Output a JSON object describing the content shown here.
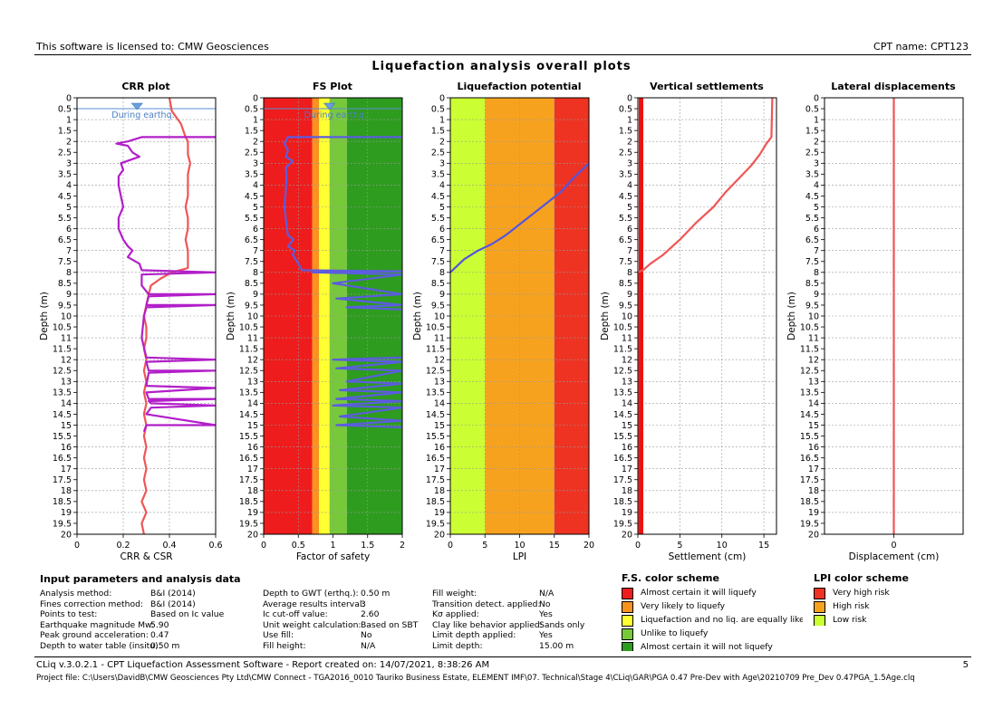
{
  "header": {
    "license": "This software is licensed to: CMW Geosciences",
    "cpt_name": "CPT name: CPT123"
  },
  "main_title": "Liquefaction analysis overall plots",
  "chart_data": [
    {
      "id": "crr",
      "type": "line",
      "title": "CRR plot",
      "xlabel": "CRR & CSR",
      "ylabel": "Depth (m)",
      "xlim": [
        0,
        0.6
      ],
      "xticks": [
        "0",
        "0.2",
        "0.4",
        "0.6"
      ],
      "xtick_values": [
        0,
        0.2,
        0.4,
        0.6
      ],
      "ylim": [
        0,
        20
      ],
      "gwt_depth": 0.5,
      "annotation": "During earthq.",
      "series": [
        {
          "color": "#f05555",
          "points": [
            [
              0.4,
              0
            ],
            [
              0.41,
              0.6
            ],
            [
              0.43,
              0.9
            ],
            [
              0.45,
              1.2
            ],
            [
              0.46,
              1.5
            ],
            [
              0.47,
              1.8
            ],
            [
              0.48,
              2.0
            ],
            [
              0.48,
              2.3
            ],
            [
              0.48,
              2.6
            ],
            [
              0.49,
              3
            ],
            [
              0.48,
              3.5
            ],
            [
              0.48,
              4
            ],
            [
              0.48,
              4.5
            ],
            [
              0.47,
              5
            ],
            [
              0.48,
              5.5
            ],
            [
              0.48,
              6
            ],
            [
              0.47,
              6.5
            ],
            [
              0.48,
              7
            ],
            [
              0.48,
              7.5
            ],
            [
              0.48,
              7.8
            ],
            [
              0.41,
              8
            ],
            [
              0.36,
              8.3
            ],
            [
              0.32,
              8.6
            ],
            [
              0.31,
              9
            ],
            [
              0.3,
              9.5
            ],
            [
              0.29,
              10
            ],
            [
              0.3,
              10.5
            ],
            [
              0.3,
              11
            ],
            [
              0.29,
              11.5
            ],
            [
              0.3,
              12
            ],
            [
              0.29,
              12.5
            ],
            [
              0.3,
              13
            ],
            [
              0.29,
              13.5
            ],
            [
              0.3,
              14
            ],
            [
              0.29,
              14.5
            ],
            [
              0.3,
              15
            ],
            [
              0.29,
              15.5
            ],
            [
              0.3,
              16
            ],
            [
              0.29,
              16.5
            ],
            [
              0.3,
              17
            ],
            [
              0.29,
              17.5
            ],
            [
              0.3,
              18
            ],
            [
              0.28,
              18.5
            ],
            [
              0.3,
              19
            ],
            [
              0.28,
              19.5
            ],
            [
              0.29,
              20
            ]
          ]
        },
        {
          "color": "#b21fc9",
          "points": [
            [
              0.6,
              1.8
            ],
            [
              0.28,
              1.8
            ],
            [
              0.22,
              2.0
            ],
            [
              0.17,
              2.1
            ],
            [
              0.22,
              2.2
            ],
            [
              0.24,
              2.5
            ],
            [
              0.27,
              2.7
            ],
            [
              0.19,
              3.0
            ],
            [
              0.2,
              3.3
            ],
            [
              0.18,
              3.6
            ],
            [
              0.18,
              4.0
            ],
            [
              0.19,
              4.5
            ],
            [
              0.2,
              5.0
            ],
            [
              0.18,
              5.5
            ],
            [
              0.18,
              6.0
            ],
            [
              0.2,
              6.5
            ],
            [
              0.22,
              6.8
            ],
            [
              0.24,
              7.0
            ],
            [
              0.22,
              7.3
            ],
            [
              0.27,
              7.6
            ],
            [
              0.28,
              7.9
            ],
            [
              0.6,
              8.0
            ],
            [
              0.28,
              8.1
            ],
            [
              0.28,
              8.6
            ],
            [
              0.31,
              9.0
            ],
            [
              0.6,
              9.0
            ],
            [
              0.31,
              9.1
            ],
            [
              0.3,
              9.5
            ],
            [
              0.6,
              9.5
            ],
            [
              0.3,
              9.6
            ],
            [
              0.29,
              10
            ],
            [
              0.28,
              11
            ],
            [
              0.3,
              11.9
            ],
            [
              0.6,
              12.0
            ],
            [
              0.3,
              12.1
            ],
            [
              0.31,
              12.5
            ],
            [
              0.6,
              12.5
            ],
            [
              0.31,
              12.6
            ],
            [
              0.3,
              13.2
            ],
            [
              0.6,
              13.3
            ],
            [
              0.3,
              13.5
            ],
            [
              0.31,
              13.8
            ],
            [
              0.6,
              13.8
            ],
            [
              0.31,
              13.9
            ],
            [
              0.32,
              14
            ],
            [
              0.6,
              14.1
            ],
            [
              0.32,
              14.2
            ],
            [
              0.3,
              14.5
            ],
            [
              0.6,
              15.0
            ],
            [
              0.3,
              15.0
            ],
            [
              0.29,
              15.3
            ]
          ]
        }
      ]
    },
    {
      "id": "fs",
      "type": "line",
      "title": "FS Plot",
      "xlabel": "Factor of safety",
      "ylabel": "Depth (m)",
      "xlim": [
        0,
        2
      ],
      "xticks": [
        "0",
        "0.5",
        "1",
        "1.5",
        "2"
      ],
      "xtick_values": [
        0,
        0.5,
        1,
        1.5,
        2
      ],
      "ylim": [
        0,
        20
      ],
      "gwt_depth": 0.5,
      "annotation": "During earthq.",
      "bands": [
        {
          "from": 0,
          "to": 0.7,
          "color": "#ee1c1c"
        },
        {
          "from": 0.7,
          "to": 0.8,
          "color": "#f7931e"
        },
        {
          "from": 0.8,
          "to": 0.95,
          "color": "#ffff33"
        },
        {
          "from": 0.95,
          "to": 1.2,
          "color": "#77c93a"
        },
        {
          "from": 1.2,
          "to": 2,
          "color": "#2e9c1f"
        }
      ],
      "series": [
        {
          "color": "#5c5ce0",
          "points": [
            [
              2,
              1.8
            ],
            [
              0.35,
              1.8
            ],
            [
              0.3,
              2.1
            ],
            [
              0.35,
              2.4
            ],
            [
              0.32,
              2.7
            ],
            [
              0.42,
              2.9
            ],
            [
              0.32,
              3.2
            ],
            [
              0.33,
              3.6
            ],
            [
              0.32,
              4.2
            ],
            [
              0.3,
              5.0
            ],
            [
              0.33,
              5.8
            ],
            [
              0.35,
              6.3
            ],
            [
              0.43,
              6.5
            ],
            [
              0.35,
              6.8
            ],
            [
              0.45,
              7.0
            ],
            [
              0.42,
              7.2
            ],
            [
              0.5,
              7.6
            ],
            [
              0.55,
              7.9
            ],
            [
              2,
              7.95
            ],
            [
              0.7,
              8.0
            ],
            [
              2,
              8.1
            ],
            [
              1.0,
              8.5
            ],
            [
              2,
              9.0
            ],
            [
              1.05,
              9.2
            ],
            [
              2,
              9.5
            ],
            [
              1.2,
              9.6
            ],
            [
              2,
              9.7
            ],
            [
              2,
              11.9
            ],
            [
              1.0,
              12.0
            ],
            [
              2,
              12.1
            ],
            [
              1.05,
              12.4
            ],
            [
              2,
              12.5
            ],
            [
              1.2,
              13.0
            ],
            [
              2,
              13.1
            ],
            [
              1.1,
              13.4
            ],
            [
              2,
              13.5
            ],
            [
              1.05,
              13.8
            ],
            [
              2,
              13.9
            ],
            [
              1.0,
              14.1
            ],
            [
              2,
              14.2
            ],
            [
              1.1,
              14.6
            ],
            [
              2,
              14.8
            ],
            [
              1.05,
              15.0
            ],
            [
              2,
              15.1
            ]
          ]
        }
      ]
    },
    {
      "id": "lpi",
      "type": "line",
      "title": "Liquefaction potential",
      "xlabel": "LPI",
      "ylabel": "Depth (m)",
      "xlim": [
        0,
        20
      ],
      "xticks": [
        "0",
        "5",
        "10",
        "15",
        "20"
      ],
      "xtick_values": [
        0,
        5,
        10,
        15,
        20
      ],
      "ylim": [
        0,
        20
      ],
      "bands": [
        {
          "from": 0,
          "to": 5,
          "color": "#ccff33"
        },
        {
          "from": 5,
          "to": 15,
          "color": "#f7a21e"
        },
        {
          "from": 15,
          "to": 20,
          "color": "#ee3322"
        }
      ],
      "series": [
        {
          "color": "#5555dd",
          "points": [
            [
              20,
              3.0
            ],
            [
              18,
              3.6
            ],
            [
              16,
              4.3
            ],
            [
              14,
              4.8
            ],
            [
              12,
              5.3
            ],
            [
              10,
              5.8
            ],
            [
              8,
              6.3
            ],
            [
              6,
              6.7
            ],
            [
              4,
              7.0
            ],
            [
              2,
              7.4
            ],
            [
              0,
              8.0
            ]
          ]
        }
      ]
    },
    {
      "id": "settlement",
      "type": "line",
      "title": "Vertical settlements",
      "xlabel": "Settlement (cm)",
      "ylabel": "Depth (m)",
      "xlim": [
        0,
        16.5
      ],
      "xticks": [
        "0",
        "5",
        "10",
        "15"
      ],
      "xtick_values": [
        0,
        5,
        10,
        15
      ],
      "ylim": [
        0,
        20
      ],
      "series": [
        {
          "color": "#f05555",
          "points": [
            [
              16,
              0
            ],
            [
              15.9,
              1.8
            ],
            [
              15.3,
              2.1
            ],
            [
              14.5,
              2.6
            ],
            [
              13.5,
              3.1
            ],
            [
              12,
              3.7
            ],
            [
              10.5,
              4.3
            ],
            [
              9,
              5.0
            ],
            [
              7,
              5.7
            ],
            [
              5,
              6.5
            ],
            [
              3,
              7.2
            ],
            [
              1.5,
              7.6
            ],
            [
              0.6,
              7.9
            ],
            [
              0,
              8.0
            ],
            [
              0,
              20
            ]
          ]
        }
      ],
      "left_bar_color": "#ee1111"
    },
    {
      "id": "lateral",
      "type": "line",
      "title": "Lateral displacements",
      "xlabel": "Displacement (cm)",
      "ylabel": "Depth (m)",
      "xlim": [
        -1,
        1
      ],
      "xticks": [
        "0"
      ],
      "xtick_values": [
        0
      ],
      "ylim": [
        0,
        20
      ],
      "series": [
        {
          "color": "#f05555",
          "points": [
            [
              0,
              0
            ],
            [
              0,
              20
            ]
          ]
        }
      ]
    }
  ],
  "y_ticks": [
    "0",
    "0.5",
    "1",
    "1.5",
    "2",
    "2.5",
    "3",
    "3.5",
    "4",
    "4.5",
    "5",
    "5.5",
    "6",
    "6.5",
    "7",
    "7.5",
    "8",
    "8.5",
    "9",
    "9.5",
    "10",
    "10.5",
    "11",
    "11.5",
    "12",
    "12.5",
    "13",
    "13.5",
    "14",
    "14.5",
    "15",
    "15.5",
    "16",
    "16.5",
    "17",
    "17.5",
    "18",
    "18.5",
    "19",
    "19.5",
    "20"
  ],
  "input_params": {
    "title": "Input parameters and analysis data",
    "col1": [
      {
        "label": "Analysis method:",
        "value": "B&I (2014)"
      },
      {
        "label": "Fines correction method:",
        "value": "B&I (2014)"
      },
      {
        "label": "Points to test:",
        "value": "Based on Ic value"
      },
      {
        "label": "Earthquake magnitude Mw:",
        "value": "5.90"
      },
      {
        "label": "Peak ground acceleration:",
        "value": "0.47"
      },
      {
        "label": "Depth to water table (insitu):",
        "value": "0.50 m"
      }
    ],
    "col2": [
      {
        "label": "Depth to GWT (erthq.):",
        "value": "0.50 m"
      },
      {
        "label": "Average results interval:",
        "value": "3"
      },
      {
        "label": "Ic cut-off value:",
        "value": "2.60"
      },
      {
        "label": "Unit weight calculation:",
        "value": "Based on SBT"
      },
      {
        "label": "Use fill:",
        "value": "No"
      },
      {
        "label": "Fill height:",
        "value": "N/A"
      }
    ],
    "col3": [
      {
        "label": "Fill weight:",
        "value": "N/A"
      },
      {
        "label": "Transition detect. applied:",
        "value": "No"
      },
      {
        "label": "Kσ applied:",
        "value": "Yes"
      },
      {
        "label": "Clay like behavior applied:",
        "value": "Sands only"
      },
      {
        "label": "Limit depth applied:",
        "value": "Yes"
      },
      {
        "label": "Limit depth:",
        "value": "15.00 m"
      }
    ]
  },
  "fs_scheme": {
    "title": "F.S. color scheme",
    "items": [
      {
        "color": "#ee1c1c",
        "label": "Almost certain it will liquefy"
      },
      {
        "color": "#f7931e",
        "label": "Very likely to liquefy"
      },
      {
        "color": "#ffff33",
        "label": "Liquefaction and no liq. are equally likely"
      },
      {
        "color": "#77c93a",
        "label": "Unlike to liquefy"
      },
      {
        "color": "#2e9c1f",
        "label": "Almost certain it will not liquefy"
      }
    ]
  },
  "lpi_scheme": {
    "title": "LPI color scheme",
    "items": [
      {
        "color": "#ee3322",
        "label": "Very high risk"
      },
      {
        "color": "#f7a21e",
        "label": "High risk"
      },
      {
        "color": "#ccff33",
        "label": "Low risk"
      }
    ]
  },
  "footer": {
    "software": "CLiq v.3.0.2.1 - CPT Liquefaction Assessment Software - Report created on: 14/07/2021, 8:38:26 AM",
    "page": "5",
    "project_file": "Project file: C:\\Users\\DavidB\\CMW Geosciences Pty Ltd\\CMW Connect - TGA2016_0010 Tauriko Business Estate, ELEMENT IMF\\07. Technical\\Stage 4\\CLiq\\GAR\\PGA 0.47 Pre-Dev with Age\\20210709 Pre_Dev 0.47PGA_1.5Age.clq"
  }
}
